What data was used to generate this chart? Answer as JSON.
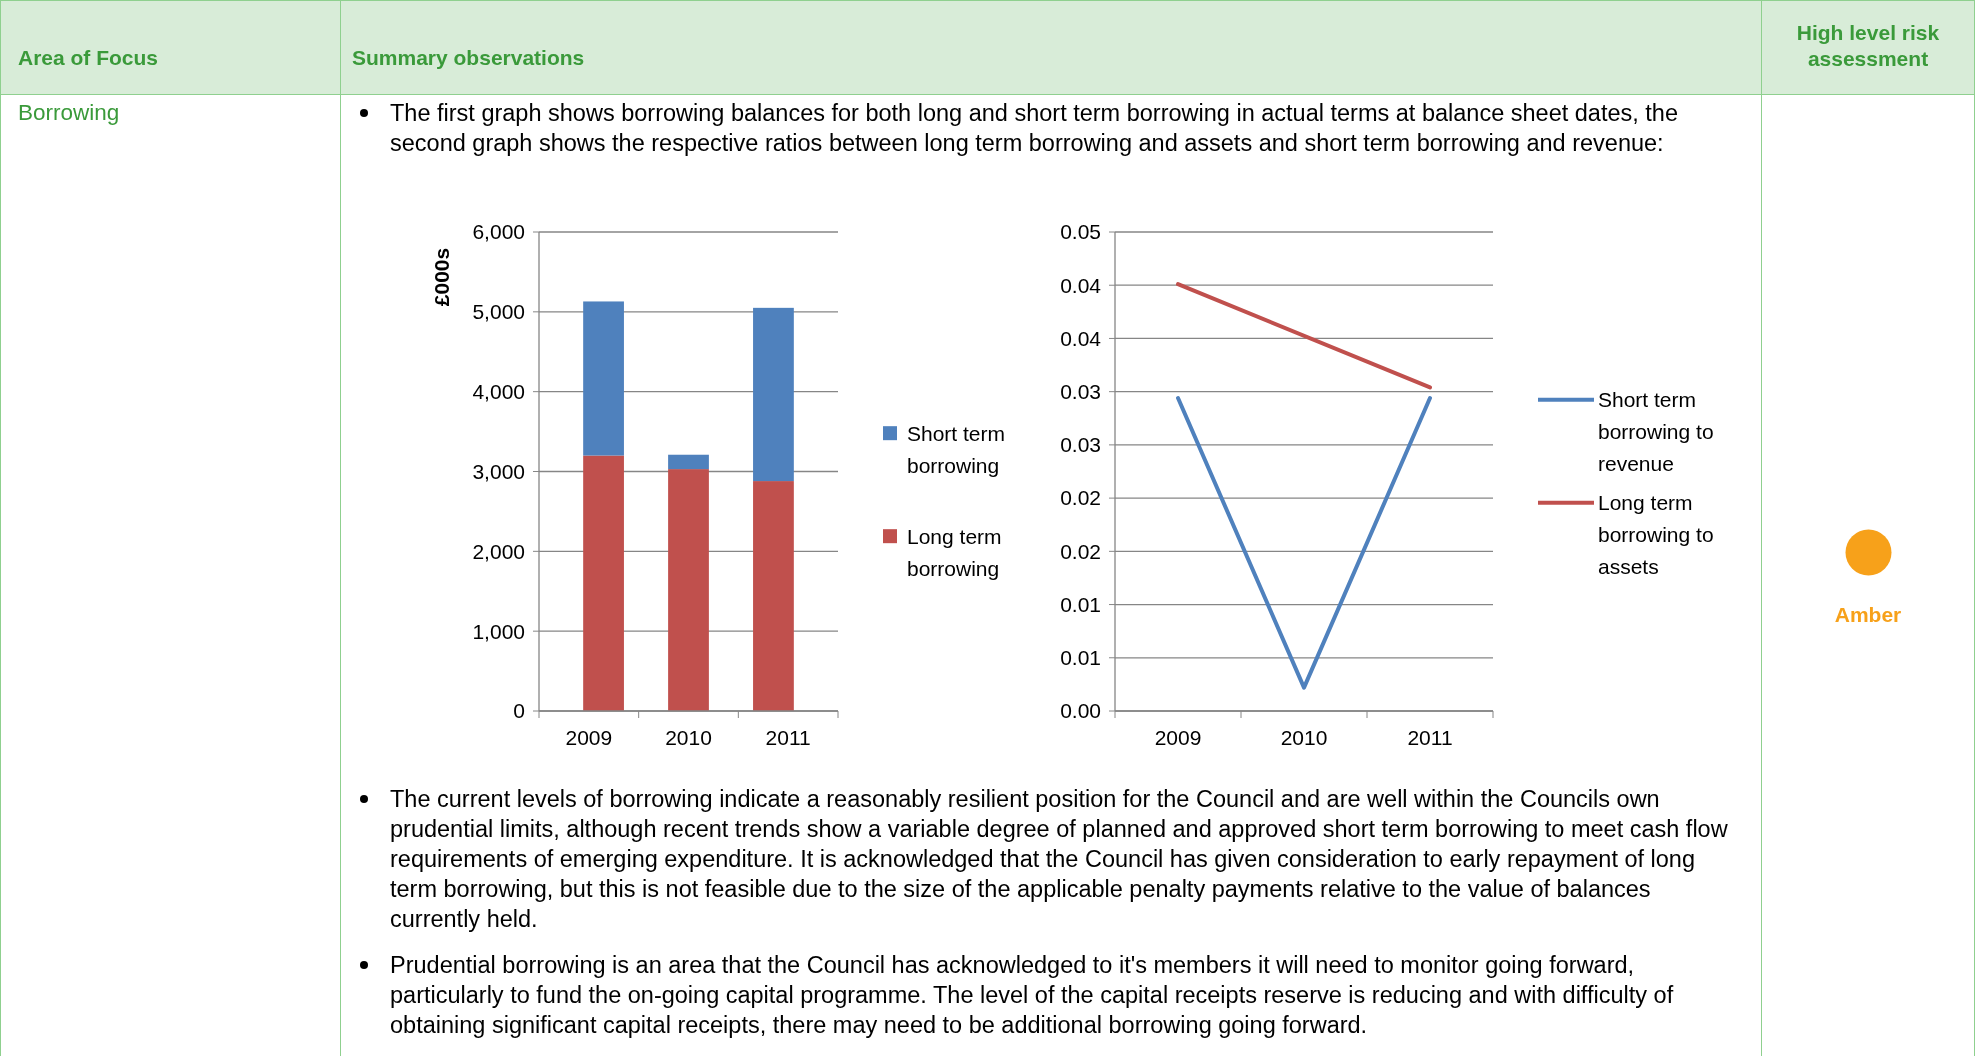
{
  "chart_data": [
    {
      "type": "other",
      "annotations": [
        "Area of Focus",
        "Summary observations",
        "High level risk assessment",
        "Borrowing",
        "The first graph shows borrowing balances for both long and short term borrowing in actual terms at balance sheet dates, the second graph shows the respective ratios between long term borrowing and assets and short term borrowing and revenue:",
        "The current levels of borrowing indicate a reasonably resilient position for the Council and are well within the Councils own prudential limits, although recent trends show a variable degree of planned and approved short term borrowing to meet cash flow requirements of emerging expenditure. It is acknowledged that the Council has given consideration to early repayment of long term borrowing, but this is not feasible due to the size of the applicable penalty payments relative to the value of balances currently held.",
        "Prudential borrowing is an area that the Council has acknowledged to it's members it will need to monitor going forward, particularly to fund the on-going capital programme. The level of the capital receipts reserve is reducing and with difficulty of obtaining significant capital receipts, there may need to be additional borrowing going forward.",
        "Amber"
      ]
    },
    {
      "type": "bar",
      "stacked": true,
      "ylabel": "£000s",
      "categories": [
        "2009",
        "2010",
        "2011"
      ],
      "ylim": [
        0,
        6000
      ],
      "yticks": [
        {
          "value": 0,
          "label": "0"
        },
        {
          "value": 1000,
          "label": "1,000"
        },
        {
          "value": 2000,
          "label": "2,000"
        },
        {
          "value": 3000,
          "label": "3,000"
        },
        {
          "value": 4000,
          "label": "4,000"
        },
        {
          "value": 5000,
          "label": "5,000"
        },
        {
          "value": 6000,
          "label": "6,000"
        }
      ],
      "grid": "y",
      "legend": "right",
      "series": [
        {
          "name": "Long term borrowing",
          "color": "#c0504d",
          "values": [
            3200,
            3030,
            2880
          ]
        },
        {
          "name": "Short term borrowing",
          "color": "#4f81bd",
          "values": [
            1930,
            180,
            2170
          ]
        }
      ]
    },
    {
      "type": "line",
      "categories": [
        "2009",
        "2010",
        "2011"
      ],
      "ylim": [
        0,
        0.045
      ],
      "yticks": [
        {
          "value": 0,
          "label": "0.00"
        },
        {
          "value": 0.005,
          "label": "0.01"
        },
        {
          "value": 0.01,
          "label": "0.01"
        },
        {
          "value": 0.015,
          "label": "0.02"
        },
        {
          "value": 0.02,
          "label": "0.02"
        },
        {
          "value": 0.025,
          "label": "0.03"
        },
        {
          "value": 0.03,
          "label": "0.03"
        },
        {
          "value": 0.035,
          "label": "0.04"
        },
        {
          "value": 0.04,
          "label": "0.04"
        },
        {
          "value": 0.045,
          "label": "0.05"
        }
      ],
      "grid": "y",
      "legend": "right",
      "marker": "none",
      "line_style": "solid",
      "series": [
        {
          "name": "Short term borrowing to revenue",
          "color": "#4f81bd",
          "values": [
            0.0294,
            0.0022,
            0.0294
          ]
        },
        {
          "name": "Long term borrowing to assets",
          "color": "#c0504d",
          "values": [
            0.0401,
            null,
            0.0304
          ]
        }
      ]
    }
  ]
}
